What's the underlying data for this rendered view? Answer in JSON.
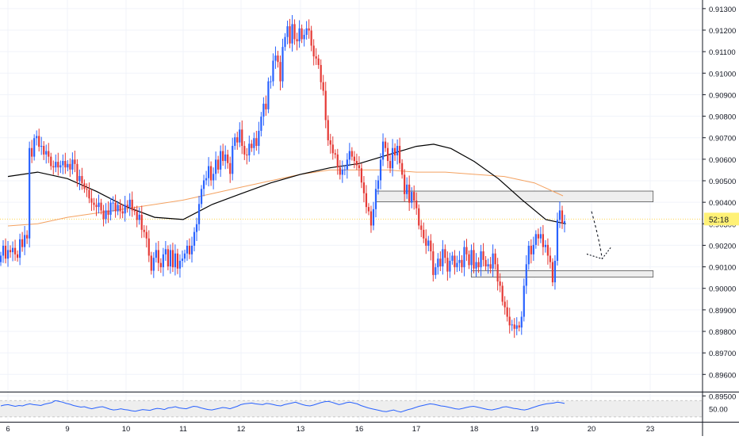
{
  "chart_data": {
    "type": "candlestick",
    "instrument_note": "",
    "y_axis": {
      "ylim": [
        0.8952,
        0.9134
      ],
      "ticks": [
        "0.91300",
        "0.91200",
        "0.91100",
        "0.91000",
        "0.90900",
        "0.90800",
        "0.90700",
        "0.90600",
        "0.90500",
        "0.90400",
        "0.90300",
        "0.90200",
        "0.90100",
        "0.90000",
        "0.89900",
        "0.89800",
        "0.89700",
        "0.89600",
        "0.89500"
      ],
      "tick_values": [
        0.913,
        0.912,
        0.911,
        0.91,
        0.909,
        0.908,
        0.907,
        0.906,
        0.905,
        0.904,
        0.903,
        0.902,
        0.901,
        0.9,
        0.899,
        0.898,
        0.897,
        0.896,
        0.895
      ]
    },
    "x_axis": {
      "ticks": [
        "6",
        "9",
        "10",
        "11",
        "12",
        "13",
        "16",
        "17",
        "18",
        "19",
        "20",
        "23"
      ],
      "tick_days": [
        0,
        1,
        2,
        3,
        4,
        5,
        6,
        7,
        8,
        9,
        10,
        11
      ]
    },
    "price_label": {
      "text": "52:18",
      "value": 0.90322,
      "color": "#fff176"
    },
    "up_color": "#2962ff",
    "down_color": "#e53935",
    "candle_closes": [
      0.90152,
      0.90198,
      0.90138,
      0.90178,
      0.90168,
      0.90188,
      0.90158,
      0.90142,
      0.90228,
      0.90192,
      0.90248,
      0.90232,
      0.90652,
      0.90612,
      0.90698,
      0.90708,
      0.90658,
      0.90662,
      0.90622,
      0.90638,
      0.90612,
      0.90568,
      0.90562,
      0.90588,
      0.90562,
      0.90572,
      0.90592,
      0.90562,
      0.90578,
      0.90552,
      0.90598,
      0.90578,
      0.90498,
      0.90522,
      0.90488,
      0.90462,
      0.90458,
      0.90418,
      0.90398,
      0.90388,
      0.90378,
      0.90398,
      0.90362,
      0.90322,
      0.90362,
      0.90342,
      0.90398,
      0.90398,
      0.90358,
      0.90388,
      0.90358,
      0.90348,
      0.90388,
      0.90378,
      0.90412,
      0.90362,
      0.90358,
      0.90318,
      0.90342,
      0.90272,
      0.90262,
      0.90232,
      0.90152,
      0.90082,
      0.90142,
      0.90178,
      0.90118,
      0.90098,
      0.90158,
      0.90182,
      0.90102,
      0.90178,
      0.90098,
      0.90162,
      0.90092,
      0.90128,
      0.90138,
      0.90162,
      0.90198,
      0.90158,
      0.90198,
      0.90262,
      0.90298,
      0.90392,
      0.90462,
      0.90502,
      0.90512,
      0.90568,
      0.90502,
      0.90532,
      0.90598,
      0.90552,
      0.90638,
      0.90592,
      0.90622,
      0.90582,
      0.90532,
      0.90662,
      0.90702,
      0.90678,
      0.90738,
      0.90662,
      0.90622,
      0.90618,
      0.90672,
      0.90652,
      0.90698,
      0.90662,
      0.90732,
      0.90798,
      0.90858,
      0.90832,
      0.90962,
      0.90962,
      0.91058,
      0.91082,
      0.91052,
      0.90962,
      0.91122,
      0.91168,
      0.91218,
      0.91138,
      0.91228,
      0.91158,
      0.91148,
      0.91208,
      0.91158,
      0.91178,
      0.91208,
      0.91198,
      0.91128,
      0.91078,
      0.91068,
      0.91038,
      0.90958,
      0.90918,
      0.90782,
      0.90688,
      0.90668,
      0.90628,
      0.90622,
      0.90562,
      0.90528,
      0.90552,
      0.90552,
      0.90598,
      0.90638,
      0.90612,
      0.90592,
      0.90572,
      0.90558,
      0.90492,
      0.90442,
      0.90378,
      0.90358,
      0.90292,
      0.90368,
      0.90462,
      0.90502,
      0.90598,
      0.90682,
      0.90652,
      0.90592,
      0.90558,
      0.90652,
      0.90618,
      0.90662,
      0.90582,
      0.90528,
      0.90438,
      0.90482,
      0.90398,
      0.90448,
      0.90408,
      0.90372,
      0.90292,
      0.90272,
      0.90232,
      0.90198,
      0.90222,
      0.90172,
      0.90062,
      0.90098,
      0.90138,
      0.90102,
      0.90182,
      0.90142,
      0.90078,
      0.90128,
      0.90152,
      0.90098,
      0.90118,
      0.90132,
      0.90098,
      0.90192,
      0.90158,
      0.90108,
      0.90178,
      0.90092,
      0.90122,
      0.90098,
      0.90172,
      0.90132,
      0.90102,
      0.90112,
      0.90092,
      0.90162,
      0.90112,
      0.90032,
      0.90012,
      0.89938,
      0.89912,
      0.89868,
      0.89828,
      0.89832,
      0.89812,
      0.89828,
      0.89818,
      0.89868,
      0.90012,
      0.90112,
      0.90198,
      0.90158,
      0.90202,
      0.90252,
      0.90232,
      0.90252,
      0.90192,
      0.90202,
      0.90152,
      0.90122,
      0.90028,
      0.90128,
      0.90318,
      0.90362,
      0.90302,
      0.90312
    ],
    "ma_black": {
      "color": "#000000",
      "points": [
        [
          0,
          0.9052
        ],
        [
          0.5,
          0.9054
        ],
        [
          1,
          0.9051
        ],
        [
          1.5,
          0.9045
        ],
        [
          2,
          0.9038
        ],
        [
          2.5,
          0.9033
        ],
        [
          3,
          0.9032
        ],
        [
          3.5,
          0.9039
        ],
        [
          4,
          0.9044
        ],
        [
          4.5,
          0.9049
        ],
        [
          5,
          0.9053
        ],
        [
          5.5,
          0.9056
        ],
        [
          6,
          0.9058
        ],
        [
          6.5,
          0.9062
        ],
        [
          7,
          0.9066
        ],
        [
          7.3,
          0.9067
        ],
        [
          7.6,
          0.9065
        ],
        [
          8,
          0.9059
        ],
        [
          8.4,
          0.9051
        ],
        [
          8.8,
          0.9041
        ],
        [
          9.2,
          0.9032
        ],
        [
          9.55,
          0.903
        ]
      ]
    },
    "ma_orange": {
      "color": "#f4a261",
      "points": [
        [
          0,
          0.9029
        ],
        [
          0.5,
          0.903
        ],
        [
          1,
          0.9033
        ],
        [
          1.5,
          0.9035
        ],
        [
          2,
          0.9037
        ],
        [
          2.5,
          0.9039
        ],
        [
          3,
          0.9041
        ],
        [
          3.5,
          0.9044
        ],
        [
          4,
          0.9047
        ],
        [
          4.5,
          0.905
        ],
        [
          5,
          0.9053
        ],
        [
          5.5,
          0.9055
        ],
        [
          6,
          0.9055
        ],
        [
          6.5,
          0.9055
        ],
        [
          7,
          0.9054
        ],
        [
          7.5,
          0.9054
        ],
        [
          8,
          0.9053
        ],
        [
          8.5,
          0.9052
        ],
        [
          9,
          0.9049
        ],
        [
          9.5,
          0.9043
        ]
      ]
    },
    "zones": [
      {
        "name": "resistance-zone",
        "x_start": 6.3,
        "x_end": 11.05,
        "y_top": 0.90452,
        "y_bottom": 0.90402
      },
      {
        "name": "support-zone",
        "x_start": 7.95,
        "x_end": 11.05,
        "y_top": 0.90082,
        "y_bottom": 0.90052
      }
    ],
    "forecast_arrow": {
      "x_start": 10.0,
      "y_start": 0.90402,
      "x_mid": 10.18,
      "y_mid": 0.90152,
      "x_end": 10.3,
      "y_end": 0.90182
    },
    "indicator": {
      "ticks": [
        "50.00"
      ],
      "tick_values": [
        50
      ],
      "ylim": [
        20,
        90
      ],
      "band": [
        30,
        70
      ],
      "line_color": "#2962ff",
      "values": [
        57,
        59,
        60,
        58,
        56,
        58,
        57,
        60,
        62,
        60,
        59,
        58,
        61,
        63,
        65,
        70,
        68,
        66,
        63,
        61,
        58,
        56,
        54,
        55,
        52,
        50,
        52,
        54,
        55,
        52,
        49,
        47,
        48,
        50,
        48,
        47,
        45,
        44,
        46,
        48,
        47,
        46,
        49,
        51,
        50,
        48,
        52,
        53,
        55,
        52,
        51,
        50,
        53,
        56,
        55,
        52,
        50,
        48,
        47,
        49,
        51,
        53,
        52,
        50,
        53,
        56,
        60,
        62,
        63,
        64,
        62,
        61,
        60,
        63,
        62,
        60,
        58,
        57,
        60,
        62,
        64,
        66,
        63,
        60,
        58,
        57,
        59,
        62,
        65,
        67,
        68,
        66,
        63,
        60,
        62,
        65,
        66,
        64,
        62,
        58,
        55,
        52,
        50,
        48,
        46,
        44,
        43,
        45,
        47,
        44,
        42,
        45,
        48,
        50,
        53,
        56,
        58,
        60,
        62,
        61,
        59,
        57,
        56,
        54,
        52,
        50,
        49,
        51,
        53,
        55,
        56,
        54,
        52,
        50,
        48,
        47,
        49,
        51,
        54,
        55,
        53,
        51,
        50,
        48,
        47,
        49,
        52,
        55,
        58,
        60,
        62,
        63,
        64,
        66,
        65,
        63
      ]
    }
  }
}
